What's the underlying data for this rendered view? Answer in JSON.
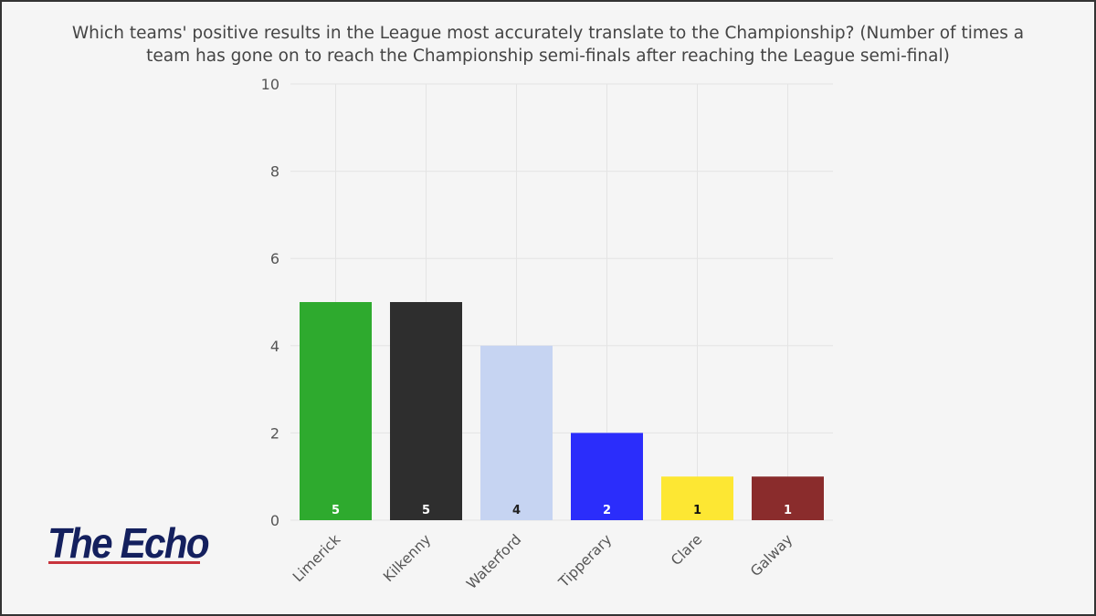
{
  "chart_data": {
    "type": "bar",
    "title": "Which teams' positive results in the League most accurately translate to the Championship? (Number of times a team has gone on to reach the Championship semi-finals after reaching the League semi-final)",
    "title_lines": [
      "Which teams' positive results in the League most accurately translate to the Championship? (Number of times a",
      "team has gone on to reach the Championship semi-finals after reaching the League semi-final)"
    ],
    "categories": [
      "Limerick",
      "Kilkenny",
      "Waterford",
      "Tipperary",
      "Clare",
      "Galway"
    ],
    "values": [
      5,
      5,
      4,
      2,
      1,
      1
    ],
    "colors": [
      "#2eaa2e",
      "#2e2e2e",
      "#c6d4f2",
      "#2b2dfb",
      "#fde733",
      "#8a2c2c"
    ],
    "label_colors": [
      "#ffffff",
      "#ffffff",
      "#222222",
      "#ffffff",
      "#111111",
      "#ffffff"
    ],
    "ylim": [
      0,
      10
    ],
    "yticks": [
      0,
      2,
      4,
      6,
      8,
      10
    ],
    "xlabel": "",
    "ylabel": "",
    "grid": true
  },
  "logo": {
    "text": "The Echo"
  }
}
